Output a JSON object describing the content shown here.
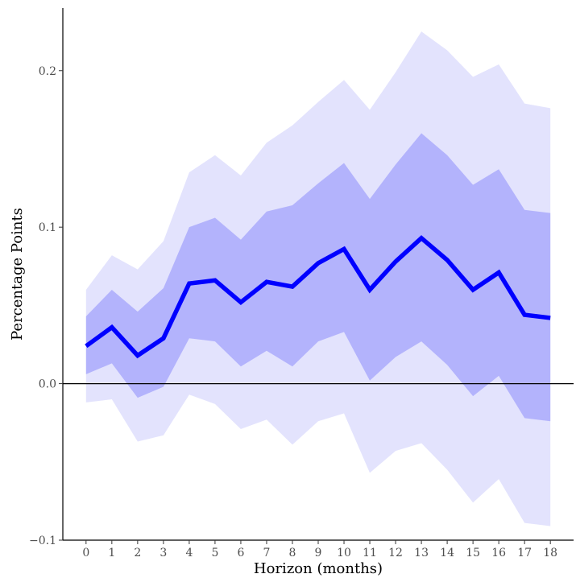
{
  "chart_data": {
    "type": "line",
    "xlabel": "Horizon (months)",
    "ylabel": "Percentage Points",
    "x": [
      0,
      1,
      2,
      3,
      4,
      5,
      6,
      7,
      8,
      9,
      10,
      11,
      12,
      13,
      14,
      15,
      16,
      17,
      18
    ],
    "xticks": [
      0,
      1,
      2,
      3,
      4,
      5,
      6,
      7,
      8,
      9,
      10,
      11,
      12,
      13,
      14,
      15,
      16,
      17,
      18
    ],
    "xlim": [
      -0.9,
      18.9
    ],
    "ylim": [
      -0.1,
      0.24
    ],
    "yticks": [
      -0.1,
      0.0,
      0.1,
      0.2
    ],
    "ytick_labels": [
      "−0.1",
      "0.0",
      "0.1",
      "0.2"
    ],
    "grid": false,
    "reference_line_y": 0,
    "series": [
      {
        "values": [
          0.024,
          0.036,
          0.018,
          0.029,
          0.064,
          0.066,
          0.052,
          0.065,
          0.062,
          0.077,
          0.086,
          0.06,
          0.078,
          0.093,
          0.079,
          0.06,
          0.071,
          0.044,
          0.042
        ],
        "color": "#0000ff"
      }
    ],
    "bands": [
      {
        "level": "outer",
        "color": "#e3e3fd",
        "upper": [
          0.06,
          0.082,
          0.073,
          0.091,
          0.135,
          0.146,
          0.133,
          0.154,
          0.165,
          0.18,
          0.194,
          0.175,
          0.199,
          0.225,
          0.213,
          0.196,
          0.204,
          0.179,
          0.176
        ],
        "lower": [
          -0.012,
          -0.01,
          -0.037,
          -0.033,
          -0.007,
          -0.013,
          -0.029,
          -0.023,
          -0.039,
          -0.024,
          -0.019,
          -0.057,
          -0.043,
          -0.038,
          -0.055,
          -0.076,
          -0.061,
          -0.089,
          -0.091
        ]
      },
      {
        "level": "inner",
        "color": "#b3b3fc",
        "upper": [
          0.043,
          0.06,
          0.046,
          0.061,
          0.1,
          0.106,
          0.092,
          0.11,
          0.114,
          0.128,
          0.141,
          0.118,
          0.14,
          0.16,
          0.146,
          0.127,
          0.137,
          0.111,
          0.109
        ],
        "lower": [
          0.006,
          0.013,
          -0.009,
          -0.002,
          0.029,
          0.027,
          0.011,
          0.021,
          0.011,
          0.027,
          0.033,
          0.002,
          0.017,
          0.027,
          0.012,
          -0.008,
          0.005,
          -0.022,
          -0.024
        ]
      }
    ]
  }
}
